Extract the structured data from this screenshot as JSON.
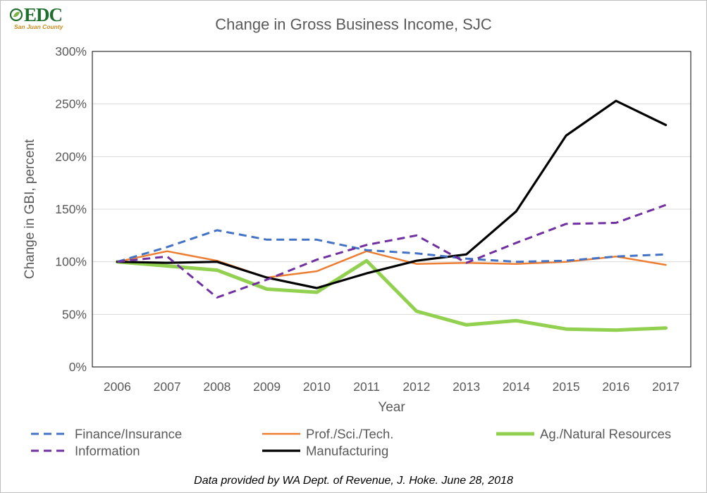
{
  "logo": {
    "text": "EDC",
    "subtext": "San Juan County"
  },
  "footer": {
    "note": "Data provided by WA Dept. of Revenue, J. Hoke. June 28, 2018"
  },
  "colors": {
    "finance": "#4472c4",
    "prof": "#ed7d31",
    "ag": "#92d050",
    "information": "#7030a0",
    "manufacturing": "#000000",
    "grid": "#d9d9d9",
    "text": "#595959"
  },
  "chart_data": {
    "type": "line",
    "title": "Change in Gross Business Income, SJC",
    "xlabel": "Year",
    "ylabel": "Change in GBI, percent",
    "ylim": [
      0,
      300
    ],
    "ytick_step": 50,
    "ytick_suffix": "%",
    "grid": true,
    "legend_position": "bottom",
    "categories": [
      "2006",
      "2007",
      "2008",
      "2009",
      "2010",
      "2011",
      "2012",
      "2013",
      "2014",
      "2015",
      "2016",
      "2017"
    ],
    "series": [
      {
        "name": "Finance/Insurance",
        "color": "#4472c4",
        "style": "dashed",
        "values": [
          100,
          114,
          130,
          121,
          121,
          111,
          108,
          103,
          100,
          101,
          105,
          107
        ]
      },
      {
        "name": "Prof./Sci./Tech.",
        "color": "#ed7d31",
        "style": "solid",
        "values": [
          100,
          110,
          101,
          85,
          91,
          110,
          98,
          99,
          98,
          100,
          105,
          97
        ]
      },
      {
        "name": "Ag./Natural Resources",
        "color": "#92d050",
        "style": "solid-thick",
        "values": [
          100,
          96,
          92,
          74,
          71,
          101,
          53,
          40,
          44,
          36,
          35,
          37
        ]
      },
      {
        "name": "Information",
        "color": "#7030a0",
        "style": "dashed",
        "values": [
          100,
          105,
          66,
          83,
          102,
          116,
          125,
          99,
          118,
          136,
          137,
          154
        ]
      },
      {
        "name": "Manufacturing",
        "color": "#000000",
        "style": "solid",
        "values": [
          100,
          99,
          100,
          85,
          75,
          89,
          101,
          107,
          148,
          220,
          253,
          230
        ]
      }
    ]
  }
}
